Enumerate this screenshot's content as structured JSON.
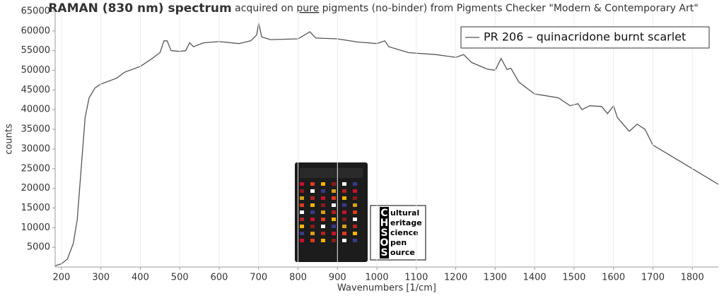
{
  "chart_data": {
    "type": "line",
    "title": [
      "RAMAN (830 nm) spectrum",
      " acquired on ",
      "pure",
      " pigments (no-binder) from Pigments Checker \"Modern & Contemporary Art\""
    ],
    "x_label": "Wavenumbers [1/cm]",
    "y_label": "counts",
    "x": [
      184,
      200,
      215,
      230,
      240,
      250,
      260,
      270,
      285,
      300,
      340,
      360,
      400,
      430,
      450,
      460,
      468,
      478,
      500,
      515,
      525,
      535,
      560,
      600,
      650,
      680,
      695,
      700,
      708,
      730,
      800,
      830,
      845,
      900,
      950,
      1000,
      1020,
      1030,
      1080,
      1150,
      1200,
      1220,
      1240,
      1280,
      1300,
      1315,
      1330,
      1340,
      1360,
      1400,
      1430,
      1460,
      1490,
      1510,
      1520,
      1540,
      1570,
      1585,
      1600,
      1610,
      1640,
      1660,
      1680,
      1700,
      1750,
      1800,
      1866
    ],
    "series": [
      {
        "name": "PR 206 – quinacridone burnt scarlet",
        "color": "#555555",
        "values": [
          300,
          800,
          2000,
          6000,
          12000,
          25000,
          38000,
          43000,
          45500,
          46500,
          48000,
          49500,
          51000,
          53000,
          54500,
          57500,
          57500,
          55000,
          54800,
          55000,
          57000,
          56000,
          57000,
          57300,
          56800,
          57500,
          59000,
          62000,
          58500,
          57800,
          58000,
          59800,
          58200,
          58000,
          57200,
          56800,
          57500,
          56000,
          54500,
          54000,
          53300,
          54000,
          52000,
          50300,
          50000,
          53000,
          50200,
          50500,
          47000,
          44000,
          43500,
          43000,
          41000,
          41500,
          40000,
          41000,
          40800,
          39000,
          41000,
          38000,
          34500,
          36300,
          35000,
          31000,
          28000,
          25000,
          21000
        ]
      }
    ],
    "xlim": [
      184,
      1866
    ],
    "ylim": [
      0,
      65000
    ],
    "xticks": [
      200,
      300,
      400,
      500,
      600,
      700,
      800,
      900,
      1000,
      1100,
      1200,
      1300,
      1400,
      1500,
      1600,
      1700,
      1800
    ],
    "yticks": [
      5000,
      10000,
      15000,
      20000,
      25000,
      30000,
      35000,
      40000,
      45000,
      50000,
      55000,
      60000,
      65000
    ],
    "grid": "x",
    "legend": "top-right"
  },
  "logo": {
    "initials": [
      "C",
      "H",
      "S",
      "O",
      "S"
    ],
    "words": [
      "ultural",
      "eritage",
      "cience",
      "pen",
      "ource"
    ]
  }
}
